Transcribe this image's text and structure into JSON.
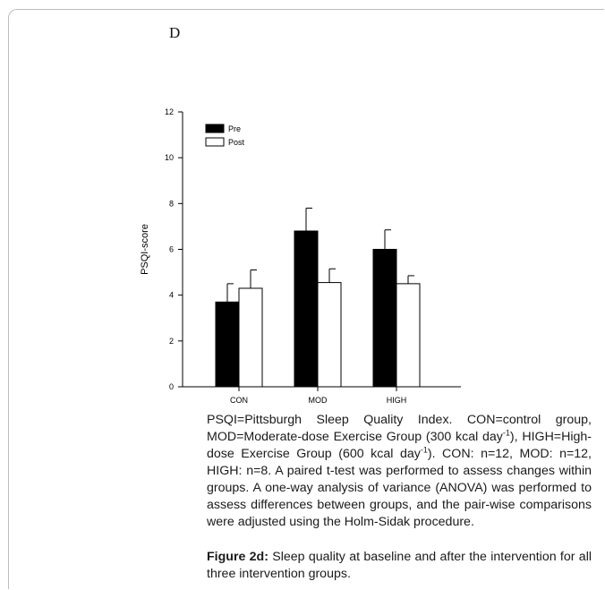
{
  "panel_label": "D",
  "chart_data": {
    "type": "bar",
    "categories": [
      "CON",
      "MOD",
      "HIGH"
    ],
    "series": [
      {
        "name": "Pre",
        "values": [
          3.7,
          6.8,
          6.0
        ],
        "errors": [
          0.8,
          1.0,
          0.85
        ],
        "color": "#000000"
      },
      {
        "name": "Post",
        "values": [
          4.3,
          4.55,
          4.5
        ],
        "errors": [
          0.8,
          0.6,
          0.35
        ],
        "color": "#ffffff"
      }
    ],
    "ylabel": "PSQI-score",
    "xlabel": "",
    "ylim": [
      0,
      12
    ],
    "yticks": [
      "0",
      "2",
      "4",
      "6",
      "8",
      "10",
      "12"
    ],
    "legend_position": "top-left",
    "grid": false
  },
  "caption": {
    "p1": "PSQI=Pittsburgh Sleep Quality Index. CON=control group, MOD=Moderate-dose Exercise Group (300 kcal day",
    "sup1": "-1",
    "p2": "), HIGH=High-dose Exercise Group (600 kcal day",
    "sup2": "-1",
    "p3": "). CON: n=12, MOD: n=12, HIGH: n=8. A paired t-test was performed to assess changes within groups. A one-way analysis of variance (ANOVA) was performed to assess differences between groups, and the pair-wise comparisons were adjusted using the Holm-Sidak procedure."
  },
  "figure_caption": {
    "label": "Figure 2d:",
    "text": " Sleep quality at baseline and after the intervention for all three intervention groups."
  }
}
